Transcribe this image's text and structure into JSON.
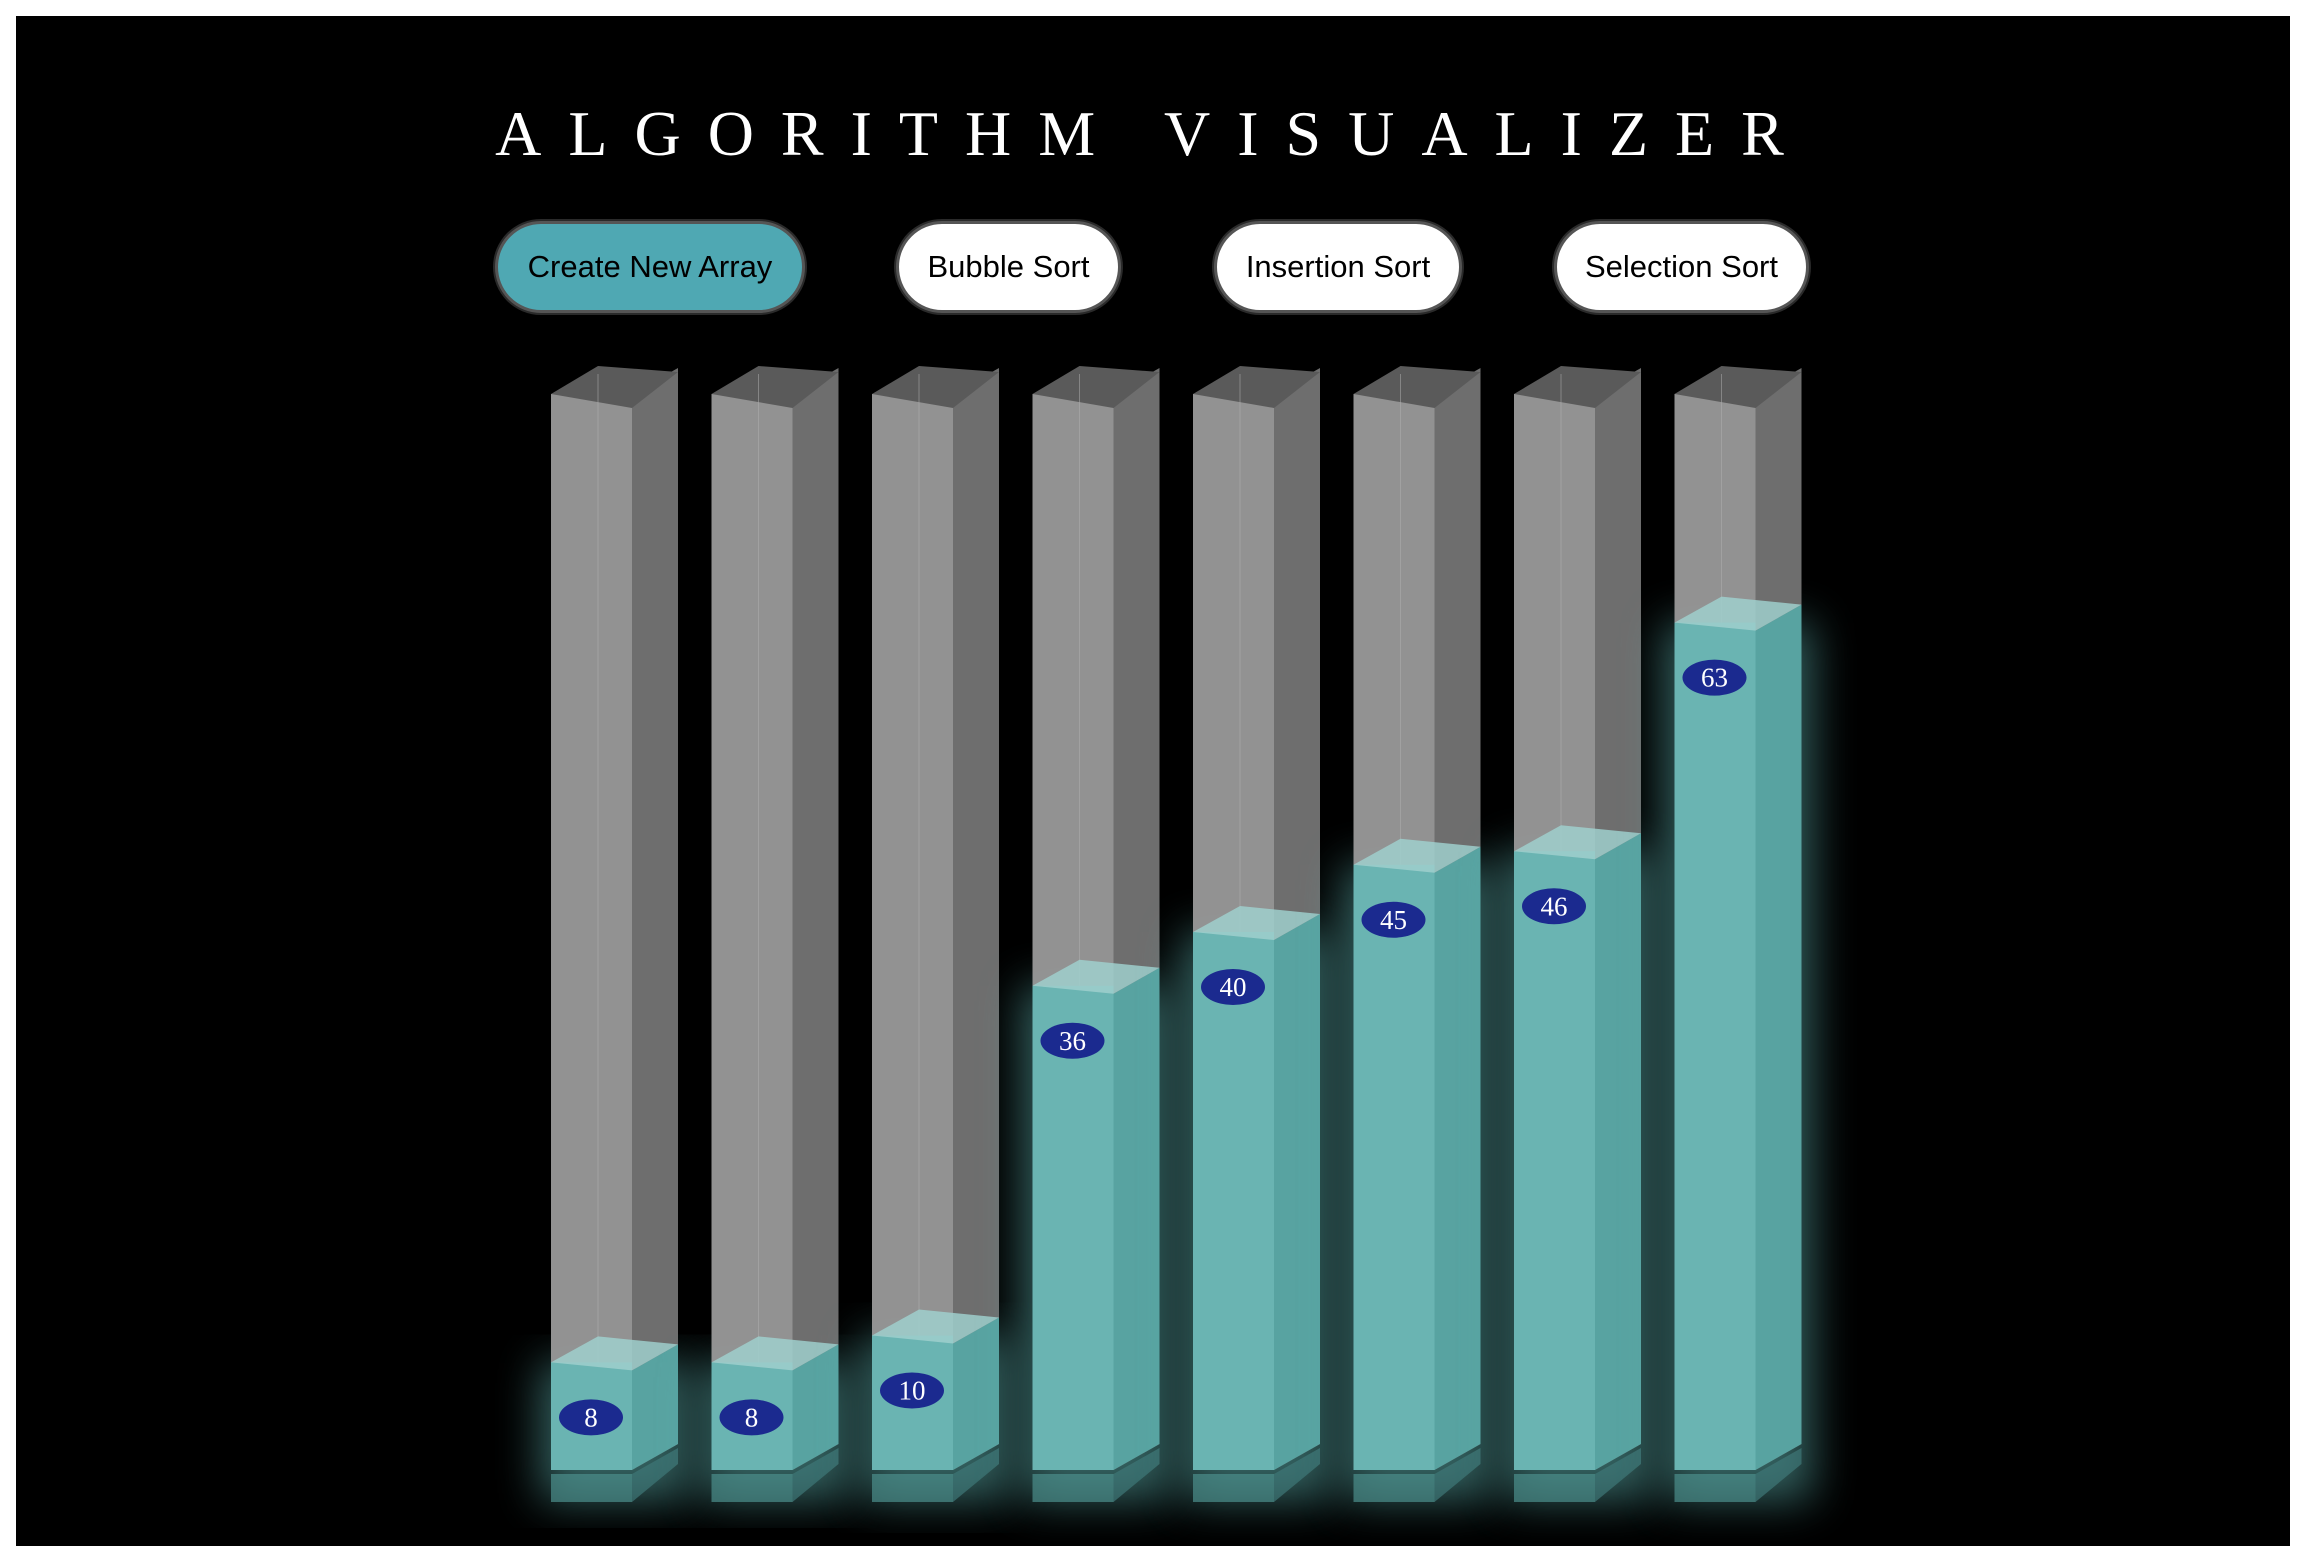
{
  "title": "ALGORITHM VISUALIZER",
  "buttons": {
    "create": "Create New Array",
    "bubble": "Bubble Sort",
    "insertion": "Insertion Sort",
    "selection": "Selection Sort"
  },
  "colors": {
    "background": "#000000",
    "fill": "#5fb2b0",
    "glass": "#9a9a9a",
    "label": "#1b2a8f",
    "active_button": "#4fa8b3"
  },
  "array_values": [
    8,
    8,
    10,
    36,
    40,
    45,
    46,
    63
  ],
  "max_value": 80
}
